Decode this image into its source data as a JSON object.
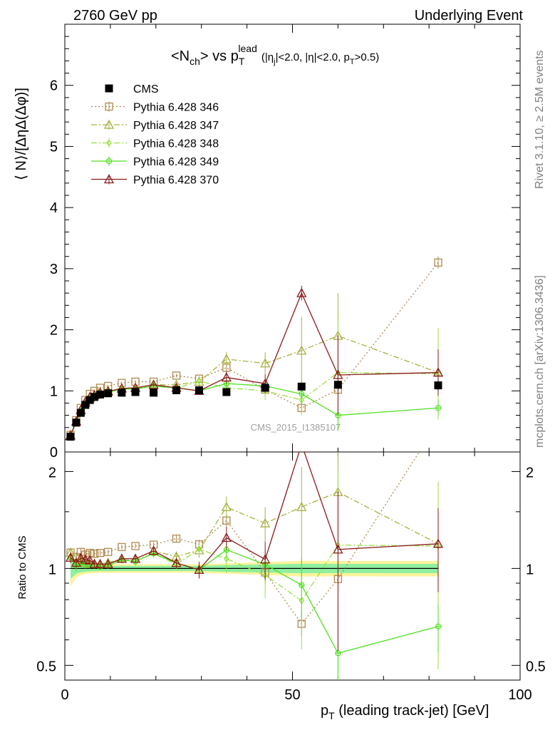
{
  "header": {
    "left": "2760 GeV pp",
    "right": "Underlying Event"
  },
  "side_labels": {
    "upper": "Rivet 3.1.10, ≥ 2.5M events",
    "lower": "mcplots.cern.ch [arXiv:1306.3436]"
  },
  "chart_data": {
    "type": "line",
    "title": {
      "prefix": "<N",
      "sub1": "ch",
      "mid": "> vs p",
      "sub2": "T",
      "sup2": "lead",
      "cuts": "(|η",
      "cuts_sub": "j",
      "cuts_mid": "|<2.0, |η|<2.0, p",
      "cuts_sub2": "T",
      "cuts_end": ">0.5)"
    },
    "watermark": "CMS_2015_I1385107",
    "xlabel": {
      "main": "p",
      "sub": "T",
      "rest": " (leading track-jet) [GeV]"
    },
    "ylabel": "⟨ N⟩/[ΔηΔ(Δφ)]",
    "ratio_ylabel": "Ratio to CMS",
    "xlim": [
      0,
      100
    ],
    "ylim": [
      0,
      7
    ],
    "ratio_ylim": [
      0.45,
      2.3
    ],
    "x_ticks": [
      0,
      50,
      100
    ],
    "y_ticks": [
      0,
      1,
      2,
      3,
      4,
      5,
      6
    ],
    "ratio_y_ticks": [
      0.5,
      1,
      2
    ],
    "legend_position": "top-left",
    "x": [
      1.25,
      2.5,
      3.5,
      4.5,
      5.5,
      6.5,
      7.75,
      9.5,
      12.5,
      15.5,
      19.5,
      24.5,
      29.5,
      35.5,
      44,
      52,
      60,
      82
    ],
    "data": {
      "name": "CMS",
      "values": [
        0.25,
        0.48,
        0.64,
        0.77,
        0.85,
        0.9,
        0.94,
        0.96,
        0.97,
        0.98,
        0.97,
        1.01,
        1.01,
        0.98,
        1.05,
        1.07,
        1.1,
        1.09
      ],
      "errors": [
        0.01,
        0.02,
        0.02,
        0.02,
        0.02,
        0.02,
        0.02,
        0.02,
        0.02,
        0.02,
        0.02,
        0.02,
        0.02,
        0.02,
        0.04,
        0.06,
        0.06,
        0.08
      ],
      "band_inner": [
        0.03,
        0.03,
        0.03,
        0.03,
        0.03,
        0.03,
        0.03,
        0.03,
        0.03,
        0.03,
        0.03,
        0.03,
        0.03,
        0.04,
        0.05,
        0.06,
        0.06,
        0.06
      ],
      "band_outer": [
        0.05,
        0.05,
        0.05,
        0.05,
        0.05,
        0.05,
        0.05,
        0.05,
        0.05,
        0.05,
        0.05,
        0.05,
        0.05,
        0.06,
        0.08,
        0.1,
        0.1,
        0.1
      ]
    },
    "series": [
      {
        "name": "Pythia 6.428 346",
        "color": "#b08a50",
        "marker": "square",
        "dash": "2,3",
        "values": [
          0.28,
          0.52,
          0.72,
          0.85,
          0.95,
          1.0,
          1.05,
          1.08,
          1.13,
          1.15,
          1.15,
          1.25,
          1.2,
          1.38,
          1.02,
          0.72,
          1.02,
          3.1
        ],
        "errors": [
          0.01,
          0.02,
          0.02,
          0.02,
          0.02,
          0.02,
          0.02,
          0.02,
          0.02,
          0.02,
          0.02,
          0.03,
          0.04,
          0.06,
          0.08,
          0.06,
          0.1,
          0.1
        ]
      },
      {
        "name": "Pythia 6.428 347",
        "color": "#a8b040",
        "marker": "triangle",
        "dash": "8,3,2,3",
        "values": [
          0.28,
          0.5,
          0.68,
          0.8,
          0.88,
          0.93,
          0.97,
          1.0,
          1.04,
          1.05,
          1.1,
          1.1,
          1.15,
          1.52,
          1.45,
          1.66,
          1.9,
          1.3
        ],
        "errors": [
          0.01,
          0.02,
          0.02,
          0.02,
          0.02,
          0.02,
          0.02,
          0.02,
          0.02,
          0.03,
          0.03,
          0.04,
          0.06,
          0.12,
          0.18,
          0.55,
          0.7,
          0.35
        ]
      },
      {
        "name": "Pythia 6.428 348",
        "color": "#98e040",
        "marker": "diamond",
        "dash": "8,3,2,3",
        "values": [
          0.27,
          0.5,
          0.68,
          0.8,
          0.88,
          0.93,
          0.97,
          1.0,
          1.03,
          1.04,
          1.08,
          1.04,
          1.16,
          1.05,
          1.0,
          0.85,
          1.3,
          1.28
        ],
        "errors": [
          0.01,
          0.02,
          0.02,
          0.02,
          0.02,
          0.02,
          0.02,
          0.02,
          0.02,
          0.03,
          0.03,
          0.04,
          0.05,
          0.1,
          0.15,
          0.25,
          0.9,
          0.75
        ]
      },
      {
        "name": "Pythia 6.428 349",
        "color": "#50e020",
        "marker": "circle-cross",
        "dash": "",
        "values": [
          0.27,
          0.49,
          0.67,
          0.79,
          0.87,
          0.92,
          0.95,
          0.98,
          1.03,
          1.03,
          1.08,
          1.05,
          1.0,
          1.12,
          1.08,
          0.95,
          0.6,
          0.72
        ],
        "errors": [
          0.01,
          0.02,
          0.02,
          0.02,
          0.02,
          0.02,
          0.02,
          0.02,
          0.02,
          0.03,
          0.03,
          0.04,
          0.05,
          0.08,
          0.12,
          0.2,
          0.25,
          0.12
        ]
      },
      {
        "name": "Pythia 6.428 370",
        "color": "#8b1a1a",
        "marker": "triangle",
        "dash": "",
        "values": [
          0.27,
          0.5,
          0.69,
          0.82,
          0.9,
          0.93,
          0.97,
          0.99,
          1.04,
          1.05,
          1.1,
          1.05,
          1.0,
          1.22,
          1.12,
          2.6,
          1.26,
          1.3
        ],
        "errors": [
          0.01,
          0.02,
          0.02,
          0.02,
          0.02,
          0.02,
          0.02,
          0.02,
          0.02,
          0.03,
          0.03,
          0.04,
          0.06,
          0.1,
          0.15,
          0.12,
          0.65,
          0.38
        ]
      }
    ]
  }
}
